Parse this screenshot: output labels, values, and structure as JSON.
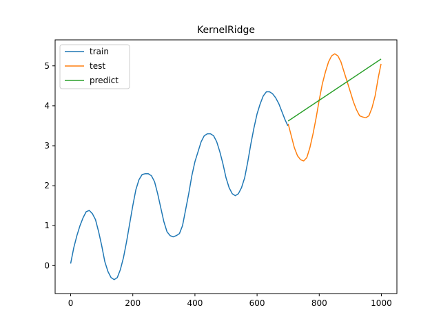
{
  "chart_data": {
    "type": "line",
    "title": "KernelRidge",
    "xlabel": "",
    "ylabel": "",
    "xlim": [
      -50,
      1050
    ],
    "ylim": [
      -0.7,
      5.65
    ],
    "xticks": [
      0,
      200,
      400,
      600,
      800,
      1000
    ],
    "yticks": [
      0,
      1,
      2,
      3,
      4,
      5
    ],
    "grid": false,
    "legend_position": "top-left",
    "series": [
      {
        "name": "train",
        "color": "#1f77b4",
        "x": [
          0,
          10,
          20,
          30,
          40,
          50,
          60,
          70,
          80,
          90,
          100,
          110,
          120,
          130,
          140,
          150,
          160,
          170,
          180,
          190,
          200,
          210,
          220,
          230,
          240,
          250,
          260,
          270,
          280,
          290,
          300,
          310,
          320,
          330,
          340,
          350,
          360,
          370,
          380,
          390,
          400,
          410,
          420,
          430,
          440,
          450,
          460,
          470,
          480,
          490,
          500,
          510,
          520,
          530,
          540,
          550,
          560,
          570,
          580,
          590,
          600,
          610,
          620,
          630,
          640,
          650,
          660,
          670,
          680,
          690,
          699
        ],
        "values": [
          0.05,
          0.45,
          0.75,
          1.0,
          1.2,
          1.35,
          1.38,
          1.3,
          1.15,
          0.85,
          0.5,
          0.1,
          -0.15,
          -0.3,
          -0.35,
          -0.3,
          -0.1,
          0.2,
          0.6,
          1.05,
          1.5,
          1.9,
          2.15,
          2.28,
          2.3,
          2.3,
          2.25,
          2.1,
          1.8,
          1.45,
          1.1,
          0.85,
          0.75,
          0.72,
          0.75,
          0.8,
          1.0,
          1.4,
          1.8,
          2.25,
          2.6,
          2.85,
          3.1,
          3.25,
          3.3,
          3.3,
          3.25,
          3.1,
          2.85,
          2.55,
          2.2,
          1.95,
          1.8,
          1.75,
          1.8,
          1.95,
          2.2,
          2.6,
          3.05,
          3.45,
          3.8,
          4.05,
          4.25,
          4.35,
          4.35,
          4.3,
          4.2,
          4.05,
          3.85,
          3.65,
          3.5
        ]
      },
      {
        "name": "test",
        "color": "#ff7f0e",
        "x": [
          700,
          710,
          720,
          730,
          740,
          750,
          760,
          770,
          780,
          790,
          800,
          810,
          820,
          830,
          840,
          850,
          860,
          870,
          880,
          890,
          900,
          910,
          920,
          930,
          940,
          950,
          960,
          970,
          980,
          990,
          999
        ],
        "values": [
          3.55,
          3.25,
          2.95,
          2.75,
          2.65,
          2.62,
          2.7,
          2.95,
          3.3,
          3.7,
          4.15,
          4.55,
          4.85,
          5.1,
          5.25,
          5.3,
          5.25,
          5.1,
          4.85,
          4.6,
          4.35,
          4.1,
          3.9,
          3.75,
          3.72,
          3.7,
          3.75,
          3.95,
          4.25,
          4.7,
          5.05
        ]
      },
      {
        "name": "predict",
        "color": "#2ca02c",
        "x": [
          700,
          999
        ],
        "values": [
          3.62,
          5.17
        ]
      }
    ]
  }
}
